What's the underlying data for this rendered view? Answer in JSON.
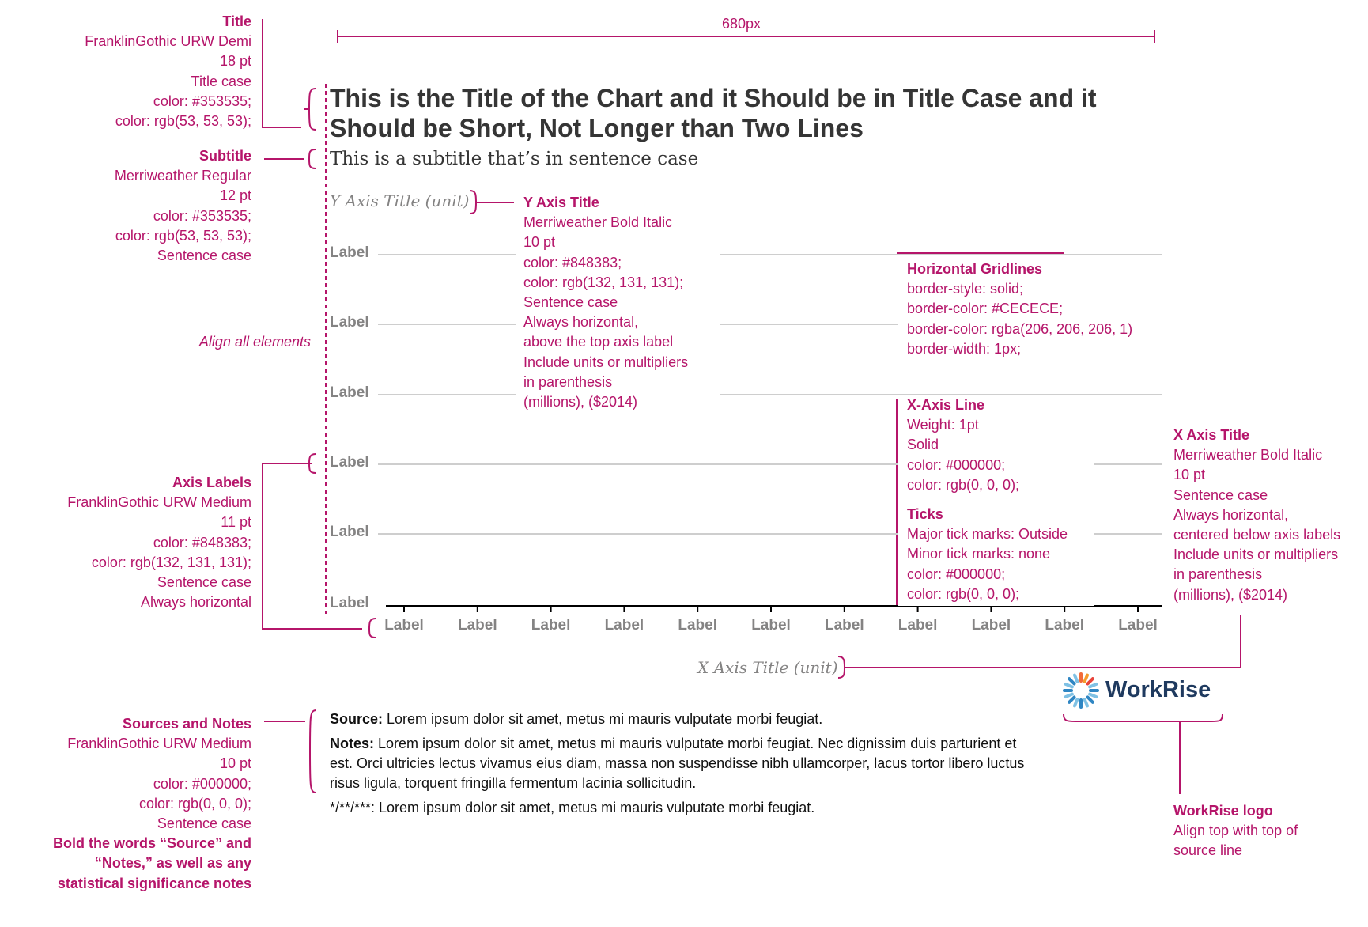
{
  "dimension_label": "680px",
  "chart": {
    "title_line1": "This is the Title of the Chart and it Should be in Title Case and it",
    "title_line2": "Should be Short, Not Longer than Two Lines",
    "subtitle": "This is a subtitle that’s in sentence case",
    "y_axis_title": "Y Axis Title (unit)",
    "x_axis_title": "X Axis Title (unit)",
    "y_labels": [
      "Label",
      "Label",
      "Label",
      "Label",
      "Label",
      "Label"
    ],
    "x_labels": [
      "Label",
      "Label",
      "Label",
      "Label",
      "Label",
      "Label",
      "Label",
      "Label",
      "Label",
      "Label",
      "Label"
    ]
  },
  "source_notes": {
    "source_bold": "Source:",
    "source_text": " Lorem ipsum dolor sit amet, metus mi mauris vulputate morbi feugiat.",
    "notes_bold": "Notes:",
    "notes_text": " Lorem ipsum dolor sit amet, metus mi mauris vulputate morbi feugiat. Nec dignissim duis parturient et est. Orci ultricies lectus vivamus eius diam, massa non suspendisse nibh ullamcorper, lacus tortor libero luctus risus ligula, torquent fringilla fermentum lacinia sollicitudin.",
    "sig_text": "*/**/***:  Lorem ipsum dolor sit amet, metus mi mauris vulputate morbi feugiat."
  },
  "logo": {
    "text": "WorkRise"
  },
  "annotations": {
    "title": [
      "Title",
      "FranklinGothic URW Demi",
      "18 pt",
      "Title case",
      "color: #353535;",
      "color: rgb(53, 53, 53);"
    ],
    "subtitle": [
      "Subtitle",
      "Merriweather Regular",
      "12 pt",
      "color: #353535;",
      "color: rgb(53, 53, 53);",
      "Sentence case"
    ],
    "align": "Align all elements",
    "axis_labels": [
      "Axis Labels",
      "FranklinGothic URW Medium",
      "11 pt",
      "color: #848383;",
      "color: rgb(132, 131, 131);",
      "Sentence case",
      "Always horizontal"
    ],
    "sources": [
      "Sources and Notes",
      "FranklinGothic URW Medium",
      "10 pt",
      "color: #000000;",
      "color: rgb(0, 0, 0);",
      "Sentence case",
      "Bold the words “Source” and",
      "“Notes,” as well as any",
      "statistical significance notes"
    ],
    "y_axis_title": [
      "Y Axis Title",
      "Merriweather Bold Italic",
      "10 pt",
      "color: #848383;",
      "color: rgb(132, 131, 131);",
      "Sentence case",
      "Always horizontal,",
      "above the top axis label",
      "Include units or multipliers",
      "in parenthesis",
      "(millions), ($2014)"
    ],
    "gridlines": [
      "Horizontal Gridlines",
      "border-style: solid;",
      "border-color: #CECECE;",
      "border-color: rgba(206, 206, 206, 1)",
      "border-width: 1px;"
    ],
    "x_axis_line": [
      "X-Axis Line",
      "Weight: 1pt",
      "Solid",
      "color: #000000;",
      "color: rgb(0, 0, 0);"
    ],
    "ticks": [
      "Ticks",
      "Major tick marks: Outside",
      "Minor tick marks: none",
      "color: #000000;",
      "color: rgb(0, 0, 0);"
    ],
    "x_axis_title": [
      "X Axis Title",
      "Merriweather Bold Italic",
      "10 pt",
      "Sentence case",
      "Always horizontal,",
      "centered below axis labels",
      "Include units or multipliers",
      "in parenthesis",
      "(millions), ($2014)"
    ],
    "logo": [
      "WorkRise logo",
      "Align top with top of",
      "source line"
    ]
  },
  "colors": {
    "annotation": "#b5156a",
    "title": "#353535",
    "axis_label": "#848383",
    "gridline": "#CECECE",
    "axis": "#000000",
    "logo_text": "#1f3a5f"
  }
}
